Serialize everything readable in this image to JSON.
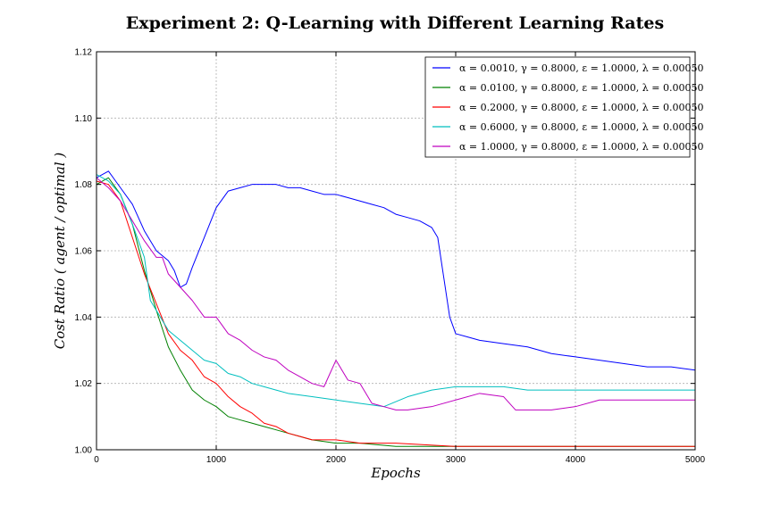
{
  "chart_data": {
    "type": "line",
    "title": "Experiment 2: Q-Learning with Different Learning Rates",
    "xlabel": "Epochs",
    "ylabel": "Cost Ratio ( agent / optimal )",
    "xlim": [
      0,
      5000
    ],
    "ylim": [
      1.0,
      1.12
    ],
    "xticks": [
      "0",
      "1000",
      "2000",
      "3000",
      "4000",
      "5000"
    ],
    "yticks": [
      "1.00",
      "1.02",
      "1.04",
      "1.06",
      "1.08",
      "1.10",
      "1.12"
    ],
    "grid": true,
    "legend_position": "top-right",
    "series": [
      {
        "name": "α = 0.0010, γ = 0.8000, ε = 1.0000, λ = 0.00050",
        "color": "#0000ff",
        "x": [
          0,
          100,
          200,
          300,
          400,
          500,
          600,
          650,
          700,
          750,
          800,
          900,
          1000,
          1100,
          1200,
          1300,
          1400,
          1500,
          1600,
          1700,
          1800,
          1900,
          2000,
          2100,
          2200,
          2300,
          2400,
          2500,
          2600,
          2700,
          2800,
          2850,
          2900,
          2950,
          3000,
          3100,
          3200,
          3400,
          3600,
          3800,
          4000,
          4200,
          4400,
          4600,
          4800,
          5000
        ],
        "y": [
          1.082,
          1.084,
          1.079,
          1.074,
          1.066,
          1.06,
          1.057,
          1.054,
          1.049,
          1.05,
          1.055,
          1.064,
          1.073,
          1.078,
          1.079,
          1.08,
          1.08,
          1.08,
          1.079,
          1.079,
          1.078,
          1.077,
          1.077,
          1.076,
          1.075,
          1.074,
          1.073,
          1.071,
          1.07,
          1.069,
          1.067,
          1.064,
          1.052,
          1.04,
          1.035,
          1.034,
          1.033,
          1.032,
          1.031,
          1.029,
          1.028,
          1.027,
          1.026,
          1.025,
          1.025,
          1.024
        ]
      },
      {
        "name": "α = 0.0100, γ = 0.8000, ε = 1.0000, λ = 0.00050",
        "color": "#008000",
        "x": [
          0,
          100,
          200,
          300,
          400,
          500,
          600,
          700,
          800,
          900,
          1000,
          1100,
          1200,
          1300,
          1400,
          1500,
          1600,
          1700,
          1800,
          2000,
          2200,
          2500,
          3000,
          3500,
          4000,
          5000
        ],
        "y": [
          1.08,
          1.082,
          1.077,
          1.068,
          1.054,
          1.042,
          1.031,
          1.024,
          1.018,
          1.015,
          1.013,
          1.01,
          1.009,
          1.008,
          1.007,
          1.006,
          1.005,
          1.004,
          1.003,
          1.002,
          1.002,
          1.001,
          1.001,
          1.001,
          1.001,
          1.001
        ]
      },
      {
        "name": "α = 0.2000, γ = 0.8000, ε = 1.0000, λ = 0.00050",
        "color": "#ff0000",
        "x": [
          0,
          100,
          200,
          300,
          400,
          500,
          600,
          700,
          800,
          900,
          1000,
          1100,
          1200,
          1300,
          1400,
          1500,
          1600,
          1700,
          1800,
          2000,
          2200,
          2500,
          3000,
          3500,
          4000,
          5000
        ],
        "y": [
          1.081,
          1.08,
          1.075,
          1.064,
          1.053,
          1.044,
          1.035,
          1.03,
          1.027,
          1.022,
          1.02,
          1.016,
          1.013,
          1.011,
          1.008,
          1.007,
          1.005,
          1.004,
          1.003,
          1.003,
          1.002,
          1.002,
          1.001,
          1.001,
          1.001,
          1.001
        ]
      },
      {
        "name": "α = 0.6000, γ = 0.8000, ε = 1.0000, λ = 0.00050",
        "color": "#00bfbf",
        "x": [
          0,
          100,
          200,
          300,
          400,
          450,
          500,
          600,
          700,
          800,
          900,
          1000,
          1100,
          1200,
          1300,
          1400,
          1500,
          1600,
          1800,
          2000,
          2200,
          2400,
          2600,
          2800,
          3000,
          3200,
          3400,
          3600,
          4000,
          4500,
          5000
        ],
        "y": [
          1.083,
          1.081,
          1.077,
          1.068,
          1.058,
          1.045,
          1.042,
          1.036,
          1.033,
          1.03,
          1.027,
          1.026,
          1.023,
          1.022,
          1.02,
          1.019,
          1.018,
          1.017,
          1.016,
          1.015,
          1.014,
          1.013,
          1.016,
          1.018,
          1.019,
          1.019,
          1.019,
          1.018,
          1.018,
          1.018,
          1.018
        ]
      },
      {
        "name": "α = 1.0000, γ = 0.8000, ε = 1.0000, λ = 0.00050",
        "color": "#bf00bf",
        "x": [
          0,
          100,
          200,
          300,
          400,
          500,
          550,
          600,
          700,
          800,
          900,
          1000,
          1100,
          1200,
          1300,
          1400,
          1500,
          1600,
          1700,
          1800,
          1900,
          2000,
          2100,
          2200,
          2300,
          2400,
          2500,
          2600,
          2800,
          3000,
          3200,
          3400,
          3500,
          3600,
          3800,
          4000,
          4200,
          4500,
          5000
        ],
        "y": [
          1.082,
          1.079,
          1.075,
          1.069,
          1.063,
          1.058,
          1.058,
          1.053,
          1.049,
          1.045,
          1.04,
          1.04,
          1.035,
          1.033,
          1.03,
          1.028,
          1.027,
          1.024,
          1.022,
          1.02,
          1.019,
          1.027,
          1.021,
          1.02,
          1.014,
          1.013,
          1.012,
          1.012,
          1.013,
          1.015,
          1.017,
          1.016,
          1.012,
          1.012,
          1.012,
          1.013,
          1.015,
          1.015,
          1.015
        ]
      }
    ]
  }
}
